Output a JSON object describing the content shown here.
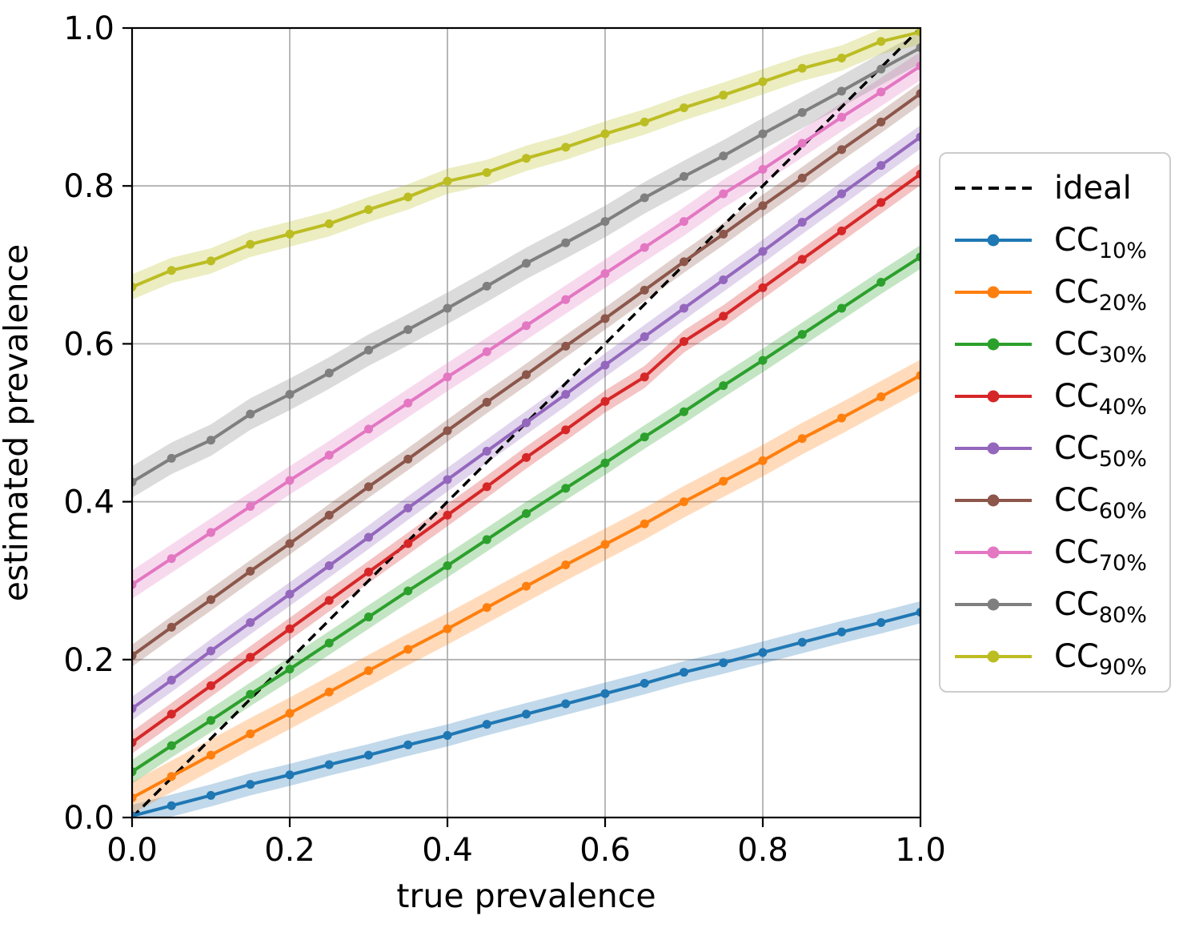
{
  "figure": {
    "background": "#ffffff",
    "text_color": "#000000",
    "grid_color": "#b0b0b0",
    "spine_color": "#000000"
  },
  "chart_data": {
    "type": "line",
    "title": "",
    "xlabel": "true prevalence",
    "ylabel": "estimated prevalence",
    "xlim": [
      0.0,
      1.0
    ],
    "ylim": [
      0.0,
      1.0
    ],
    "grid": true,
    "legend_position": "right-outside",
    "xticks": {
      "values": [
        0.0,
        0.2,
        0.4,
        0.6,
        0.8,
        1.0
      ],
      "labels": [
        "0.0",
        "0.2",
        "0.4",
        "0.6",
        "0.8",
        "1.0"
      ]
    },
    "yticks": {
      "values": [
        0.0,
        0.2,
        0.4,
        0.6,
        0.8,
        1.0
      ],
      "labels": [
        "0.0",
        "0.2",
        "0.4",
        "0.6",
        "0.8",
        "1.0"
      ]
    },
    "x": [
      0.0,
      0.05,
      0.1,
      0.15,
      0.2,
      0.25,
      0.3,
      0.35,
      0.4,
      0.45,
      0.5,
      0.55,
      0.6,
      0.65,
      0.7,
      0.75,
      0.8,
      0.85,
      0.9,
      0.95,
      1.0
    ],
    "ideal": {
      "id": "ideal",
      "label": "ideal",
      "style": "dashed",
      "color": "#000000",
      "x": [
        0.0,
        1.0
      ],
      "y": [
        0.0,
        1.0
      ]
    },
    "series": [
      {
        "id": "cc10",
        "label_main": "CC",
        "label_sub": "10%",
        "color": "#1f77b4",
        "band": 0.014,
        "values": [
          0.002,
          0.015,
          0.028,
          0.042,
          0.054,
          0.067,
          0.079,
          0.092,
          0.104,
          0.118,
          0.131,
          0.144,
          0.157,
          0.17,
          0.184,
          0.196,
          0.209,
          0.222,
          0.235,
          0.247,
          0.26
        ]
      },
      {
        "id": "cc20",
        "label_main": "CC",
        "label_sub": "20%",
        "color": "#ff7f0e",
        "band": 0.02,
        "values": [
          0.025,
          0.052,
          0.079,
          0.106,
          0.132,
          0.159,
          0.186,
          0.213,
          0.239,
          0.266,
          0.293,
          0.32,
          0.346,
          0.372,
          0.4,
          0.426,
          0.452,
          0.48,
          0.506,
          0.533,
          0.56
        ]
      },
      {
        "id": "cc30",
        "label_main": "CC",
        "label_sub": "30%",
        "color": "#2ca02c",
        "band": 0.015,
        "values": [
          0.058,
          0.091,
          0.123,
          0.156,
          0.188,
          0.221,
          0.254,
          0.287,
          0.319,
          0.352,
          0.385,
          0.417,
          0.449,
          0.482,
          0.514,
          0.547,
          0.579,
          0.612,
          0.645,
          0.678,
          0.71
        ]
      },
      {
        "id": "cc40",
        "label_main": "CC",
        "label_sub": "40%",
        "color": "#d62728",
        "band": 0.014,
        "values": [
          0.095,
          0.131,
          0.167,
          0.203,
          0.239,
          0.275,
          0.311,
          0.347,
          0.383,
          0.419,
          0.456,
          0.491,
          0.527,
          0.558,
          0.603,
          0.635,
          0.671,
          0.707,
          0.743,
          0.779,
          0.815
        ]
      },
      {
        "id": "cc50",
        "label_main": "CC",
        "label_sub": "50%",
        "color": "#9467bd",
        "band": 0.015,
        "values": [
          0.138,
          0.174,
          0.211,
          0.247,
          0.283,
          0.319,
          0.355,
          0.392,
          0.428,
          0.464,
          0.5,
          0.536,
          0.573,
          0.609,
          0.645,
          0.681,
          0.717,
          0.754,
          0.79,
          0.826,
          0.862
        ]
      },
      {
        "id": "cc60",
        "label_main": "CC",
        "label_sub": "60%",
        "color": "#8c564b",
        "band": 0.014,
        "values": [
          0.205,
          0.241,
          0.276,
          0.312,
          0.347,
          0.383,
          0.419,
          0.454,
          0.49,
          0.526,
          0.561,
          0.597,
          0.632,
          0.668,
          0.704,
          0.739,
          0.775,
          0.81,
          0.846,
          0.881,
          0.917
        ]
      },
      {
        "id": "cc70",
        "label_main": "CC",
        "label_sub": "70%",
        "color": "#e377c2",
        "band": 0.018,
        "values": [
          0.295,
          0.328,
          0.361,
          0.394,
          0.427,
          0.459,
          0.492,
          0.525,
          0.558,
          0.59,
          0.623,
          0.656,
          0.689,
          0.722,
          0.755,
          0.79,
          0.821,
          0.854,
          0.887,
          0.919,
          0.952
        ]
      },
      {
        "id": "cc80",
        "label_main": "CC",
        "label_sub": "80%",
        "color": "#7f7f7f",
        "band": 0.02,
        "values": [
          0.425,
          0.455,
          0.478,
          0.511,
          0.536,
          0.563,
          0.592,
          0.618,
          0.645,
          0.673,
          0.702,
          0.728,
          0.755,
          0.785,
          0.812,
          0.838,
          0.866,
          0.893,
          0.92,
          0.948,
          0.975
        ]
      },
      {
        "id": "cc90",
        "label_main": "CC",
        "label_sub": "90%",
        "color": "#bcbd22",
        "band": 0.016,
        "values": [
          0.672,
          0.693,
          0.705,
          0.726,
          0.739,
          0.752,
          0.77,
          0.786,
          0.806,
          0.817,
          0.835,
          0.849,
          0.866,
          0.881,
          0.899,
          0.915,
          0.932,
          0.949,
          0.962,
          0.983,
          0.995
        ]
      }
    ]
  }
}
